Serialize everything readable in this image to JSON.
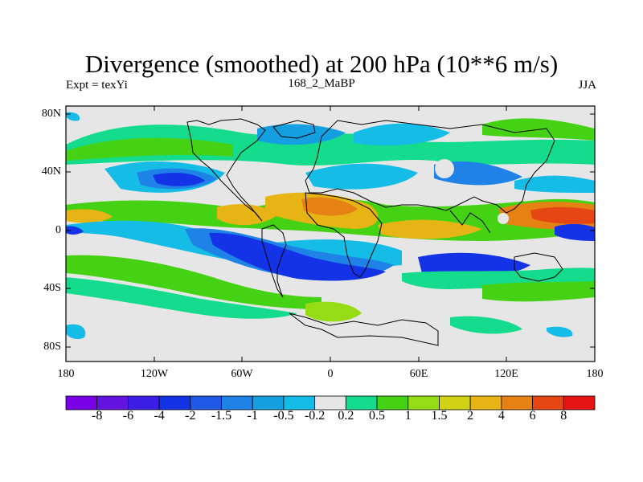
{
  "map": {
    "title": "Divergence (smoothed) at 200 hPa (10**6 m/s)",
    "left_label": "Expt = texYi",
    "center_label": "168_2_MaBP",
    "right_label": "JJA",
    "lat_ticks": [
      "80N",
      "40N",
      "0",
      "40S",
      "80S"
    ],
    "lon_ticks": [
      "180",
      "120W",
      "60W",
      "0",
      "60E",
      "120E",
      "180"
    ],
    "colorbar": {
      "labels": [
        "-8",
        "-6",
        "-4",
        "-2",
        "-1.5",
        "-1",
        "-0.5",
        "-0.2",
        "0.2",
        "0.5",
        "1",
        "1.5",
        "2",
        "4",
        "6",
        "8"
      ],
      "colors": [
        "#7a00e8",
        "#6414e0",
        "#3c1ee6",
        "#1432e6",
        "#1e5ae6",
        "#1e82e6",
        "#14a0e0",
        "#14bce6",
        "#e6e6e6",
        "#14dc8c",
        "#46d214",
        "#96dc14",
        "#d2d214",
        "#e6b414",
        "#e68214",
        "#e64614",
        "#e61414"
      ]
    }
  }
}
